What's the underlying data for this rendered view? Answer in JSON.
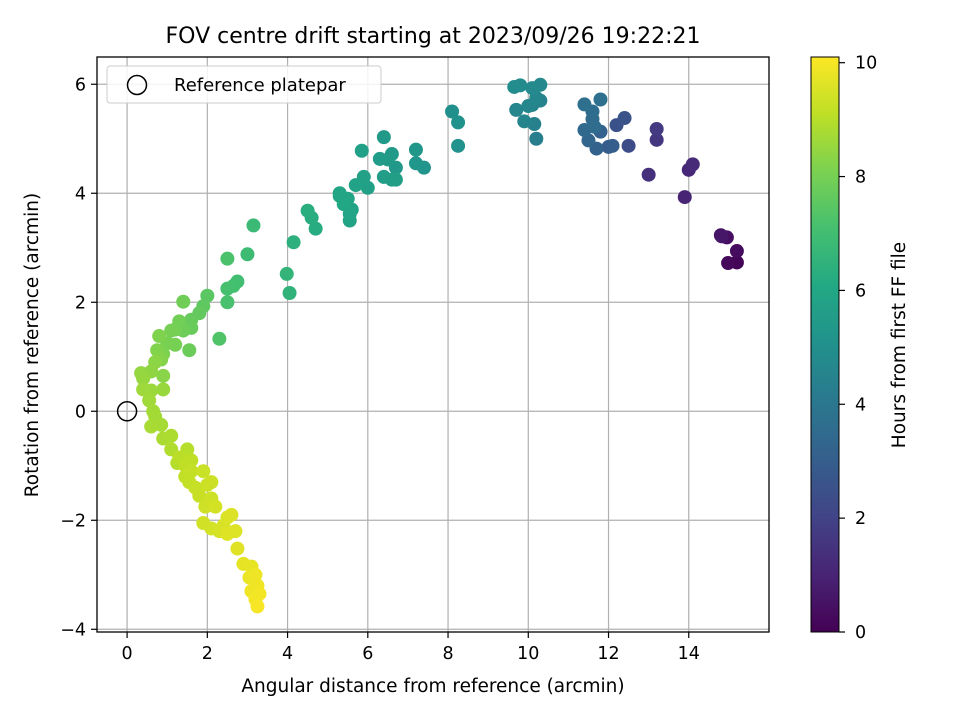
{
  "chart_data": {
    "type": "scatter",
    "title": "FOV centre drift starting at 2023/09/26 19:22:21",
    "xlabel": "Angular distance from reference (arcmin)",
    "ylabel": "Rotation from reference (arcmin)",
    "xlim": [
      -0.75,
      16.0
    ],
    "ylim": [
      -4.05,
      6.5
    ],
    "xticks": [
      "0",
      "2",
      "4",
      "6",
      "8",
      "10",
      "12",
      "14"
    ],
    "yticks": [
      "−4",
      "−2",
      "0",
      "2",
      "4",
      "6"
    ],
    "grid": true,
    "legend": {
      "placement": "upper-left",
      "entries": [
        "Reference platepar"
      ]
    },
    "reference_point": {
      "x": 0,
      "y": 0
    },
    "colorbar": {
      "label": "Hours from first FF file",
      "colormap": "viridis",
      "range": [
        0,
        10.1
      ],
      "ticks": [
        "0",
        "2",
        "4",
        "6",
        "8",
        "10"
      ]
    },
    "points": [
      [
        15.2,
        2.73,
        0.1
      ],
      [
        14.98,
        2.72,
        0.2
      ],
      [
        15.2,
        2.94,
        0.3
      ],
      [
        14.95,
        3.19,
        0.4
      ],
      [
        14.8,
        3.23,
        0.5
      ],
      [
        14.82,
        3.21,
        0.6
      ],
      [
        13.9,
        3.93,
        1.0
      ],
      [
        14.0,
        4.43,
        1.1
      ],
      [
        14.1,
        4.53,
        1.2
      ],
      [
        13.0,
        4.34,
        1.4
      ],
      [
        13.2,
        4.98,
        1.6
      ],
      [
        13.2,
        5.18,
        1.7
      ],
      [
        12.5,
        4.87,
        2.3
      ],
      [
        12.2,
        5.25,
        2.5
      ],
      [
        12.4,
        5.38,
        2.6
      ],
      [
        12.0,
        4.85,
        2.9
      ],
      [
        12.1,
        4.87,
        3.0
      ],
      [
        11.8,
        5.13,
        3.1
      ],
      [
        11.7,
        4.82,
        3.2
      ],
      [
        11.5,
        4.97,
        3.3
      ],
      [
        11.4,
        5.16,
        3.4
      ],
      [
        11.6,
        5.36,
        3.5
      ],
      [
        11.65,
        5.22,
        3.55
      ],
      [
        11.6,
        5.5,
        3.6
      ],
      [
        11.4,
        5.63,
        3.7
      ],
      [
        11.8,
        5.72,
        3.75
      ],
      [
        10.2,
        5.0,
        4.3
      ],
      [
        10.15,
        5.27,
        4.4
      ],
      [
        10.3,
        5.7,
        4.45
      ],
      [
        10.1,
        5.62,
        4.5
      ],
      [
        9.9,
        5.32,
        4.55
      ],
      [
        9.7,
        5.53,
        4.6
      ],
      [
        10.0,
        5.6,
        4.62
      ],
      [
        10.2,
        5.75,
        4.65
      ],
      [
        10.3,
        5.99,
        4.7
      ],
      [
        10.1,
        5.93,
        4.75
      ],
      [
        9.8,
        5.98,
        4.8
      ],
      [
        9.65,
        5.95,
        4.85
      ],
      [
        8.1,
        5.5,
        5.0
      ],
      [
        8.25,
        5.3,
        5.05
      ],
      [
        8.25,
        4.87,
        5.1
      ],
      [
        7.4,
        4.47,
        5.2
      ],
      [
        7.2,
        4.55,
        5.25
      ],
      [
        7.2,
        4.8,
        5.3
      ],
      [
        6.7,
        4.47,
        5.35
      ],
      [
        6.4,
        5.03,
        5.4
      ],
      [
        6.6,
        4.72,
        5.45
      ],
      [
        6.5,
        4.62,
        5.5
      ],
      [
        6.3,
        4.63,
        5.55
      ],
      [
        6.4,
        4.3,
        5.6
      ],
      [
        6.6,
        4.25,
        5.62
      ],
      [
        6.7,
        4.25,
        5.64
      ],
      [
        6.0,
        4.1,
        5.7
      ],
      [
        5.85,
        4.78,
        5.72
      ],
      [
        5.9,
        4.3,
        5.75
      ],
      [
        5.7,
        4.15,
        5.8
      ],
      [
        5.55,
        3.5,
        5.82
      ],
      [
        5.6,
        3.7,
        5.85
      ],
      [
        5.55,
        3.62,
        5.87
      ],
      [
        5.5,
        3.9,
        5.9
      ],
      [
        5.3,
        3.95,
        5.92
      ],
      [
        5.3,
        4.0,
        5.95
      ],
      [
        5.4,
        3.8,
        6.0
      ],
      [
        4.7,
        3.35,
        6.2
      ],
      [
        4.6,
        3.55,
        6.25
      ],
      [
        4.5,
        3.68,
        6.3
      ],
      [
        4.15,
        3.1,
        6.4
      ],
      [
        4.05,
        2.17,
        6.5
      ],
      [
        3.98,
        2.52,
        6.6
      ],
      [
        3.15,
        3.41,
        6.8
      ],
      [
        3.0,
        2.88,
        6.9
      ],
      [
        2.75,
        2.38,
        7.0
      ],
      [
        2.65,
        2.3,
        7.05
      ],
      [
        2.5,
        2.25,
        7.1
      ],
      [
        2.5,
        2.0,
        7.15
      ],
      [
        2.5,
        2.8,
        7.2
      ],
      [
        2.3,
        1.33,
        7.3
      ],
      [
        2.0,
        2.12,
        7.5
      ],
      [
        1.9,
        1.93,
        7.6
      ],
      [
        1.8,
        1.8,
        7.65
      ],
      [
        1.6,
        1.68,
        7.7
      ],
      [
        1.6,
        1.53,
        7.75
      ],
      [
        1.55,
        1.12,
        7.8
      ],
      [
        1.4,
        1.48,
        7.85
      ],
      [
        1.4,
        2.01,
        7.9
      ],
      [
        1.3,
        1.65,
        7.92
      ],
      [
        1.2,
        1.5,
        7.95
      ],
      [
        1.2,
        1.22,
        8.0
      ],
      [
        1.1,
        1.48,
        8.02
      ],
      [
        1.0,
        1.25,
        8.05
      ],
      [
        0.9,
        1.05,
        8.1
      ],
      [
        0.8,
        1.38,
        8.15
      ],
      [
        0.75,
        1.12,
        8.2
      ],
      [
        0.85,
        0.95,
        8.25
      ],
      [
        0.9,
        0.65,
        8.3
      ],
      [
        0.7,
        0.9,
        8.35
      ],
      [
        0.6,
        0.73,
        8.4
      ],
      [
        0.35,
        0.7,
        8.45
      ],
      [
        0.4,
        0.6,
        8.5
      ],
      [
        0.9,
        0.4,
        8.55
      ],
      [
        0.6,
        0.38,
        8.6
      ],
      [
        0.4,
        0.4,
        8.62
      ],
      [
        0.55,
        0.2,
        8.65
      ],
      [
        0.65,
        0.0,
        8.7
      ],
      [
        0.7,
        -0.1,
        8.72
      ],
      [
        0.85,
        -0.25,
        8.75
      ],
      [
        0.6,
        -0.28,
        8.78
      ],
      [
        0.9,
        -0.5,
        8.8
      ],
      [
        1.1,
        -0.45,
        8.85
      ],
      [
        1.1,
        -0.7,
        8.9
      ],
      [
        1.25,
        -0.95,
        8.95
      ],
      [
        1.5,
        -0.7,
        9.0
      ],
      [
        1.3,
        -0.85,
        9.05
      ],
      [
        1.45,
        -1.0,
        9.1
      ],
      [
        1.6,
        -0.9,
        9.12
      ],
      [
        1.45,
        -1.2,
        9.15
      ],
      [
        1.55,
        -1.3,
        9.18
      ],
      [
        1.6,
        -1.1,
        9.2
      ],
      [
        1.7,
        -1.4,
        9.22
      ],
      [
        1.8,
        -1.55,
        9.25
      ],
      [
        1.9,
        -1.1,
        9.28
      ],
      [
        2.0,
        -1.35,
        9.3
      ],
      [
        2.1,
        -1.3,
        9.32
      ],
      [
        2.1,
        -1.6,
        9.35
      ],
      [
        1.95,
        -1.75,
        9.38
      ],
      [
        1.9,
        -2.05,
        9.4
      ],
      [
        2.1,
        -2.15,
        9.42
      ],
      [
        2.2,
        -1.75,
        9.45
      ],
      [
        2.3,
        -2.2,
        9.48
      ],
      [
        2.4,
        -2.1,
        9.5
      ],
      [
        2.5,
        -1.95,
        9.55
      ],
      [
        2.6,
        -1.9,
        9.58
      ],
      [
        2.7,
        -2.2,
        9.6
      ],
      [
        2.5,
        -2.25,
        9.62
      ],
      [
        2.75,
        -2.52,
        9.65
      ],
      [
        2.9,
        -2.8,
        9.7
      ],
      [
        3.1,
        -2.85,
        9.75
      ],
      [
        3.05,
        -3.05,
        9.8
      ],
      [
        3.2,
        -3.0,
        9.85
      ],
      [
        3.25,
        -3.2,
        9.88
      ],
      [
        3.1,
        -3.3,
        9.9
      ],
      [
        3.3,
        -3.35,
        9.92
      ],
      [
        3.2,
        -3.45,
        9.95
      ],
      [
        3.25,
        -3.58,
        10.0
      ]
    ]
  }
}
